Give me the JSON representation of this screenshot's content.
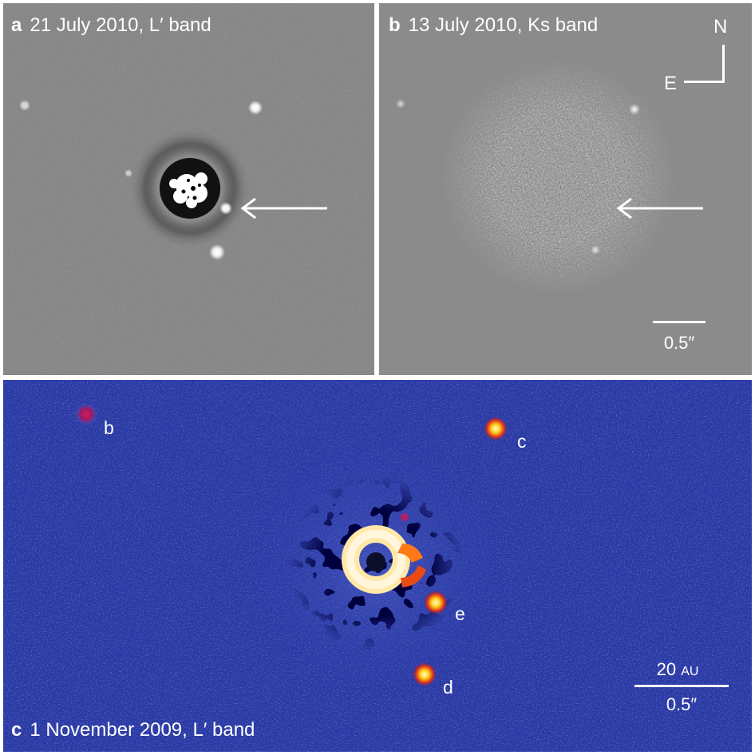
{
  "panels": {
    "a": {
      "letter": "a",
      "caption": "21 July 2010, L′ band",
      "arrow_icon": "arrow-left-icon"
    },
    "b": {
      "letter": "b",
      "caption": "13 July 2010, Ks band",
      "arrow_icon": "arrow-left-icon",
      "compass": {
        "north": "N",
        "east": "E"
      },
      "scale": "0.5″"
    },
    "c": {
      "letter": "c",
      "caption": "1 November 2009, L′ band",
      "planets": [
        "b",
        "c",
        "e",
        "d"
      ],
      "scale_top_value": "20",
      "scale_top_unit": "AU",
      "scale_bottom": "0.5″"
    }
  }
}
